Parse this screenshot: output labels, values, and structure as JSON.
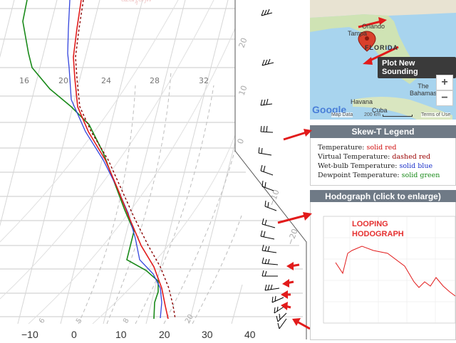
{
  "skewt": {
    "x_ticks": [
      "−10",
      "0",
      "10",
      "20",
      "30",
      "40"
    ],
    "mixing_ratio_labels": [
      "16",
      "20",
      "24",
      "28",
      "32"
    ],
    "theta_labels": [
      "20",
      "10",
      "0",
      "−10",
      "−20"
    ],
    "bottom_small_labels": [
      "6",
      "5",
      "8",
      "20"
    ],
    "colors": {
      "temperature": "#e21b1b",
      "virtual": "#8b0000",
      "wetbulb": "#3344dd",
      "dewpoint": "#1a8a1a"
    }
  },
  "map": {
    "labels": {
      "orlando": "Orlando",
      "tampa": "Tampa",
      "florida": "FLORIDA",
      "havana": "Havana",
      "cuba": "Cuba",
      "bahamas": "The\nBahamas",
      "google": "Google"
    },
    "plot_button": "Plot New Sounding",
    "zoom_in": "+",
    "zoom_out": "−",
    "footer": {
      "map_data": "Map Data",
      "scale": "200 km",
      "terms": "Terms of Use"
    }
  },
  "legend": {
    "title": "Skew-T Legend",
    "items": [
      {
        "label": "Temperature:",
        "desc": "solid red",
        "color": "#d01010"
      },
      {
        "label": "Virtual Temperature:",
        "desc": "dashed red",
        "color": "#9a0000"
      },
      {
        "label": "Wet-bulb Temperature:",
        "desc": "solid blue",
        "color": "#1a2fc9"
      },
      {
        "label": "Dewpoint Temperature:",
        "desc": "solid green",
        "color": "#1a8a1a"
      }
    ]
  },
  "hodograph": {
    "title": "Hodograph (click to enlarge)",
    "annotation_line1": "LOOPING",
    "annotation_line2": "HODOGRAPH"
  }
}
